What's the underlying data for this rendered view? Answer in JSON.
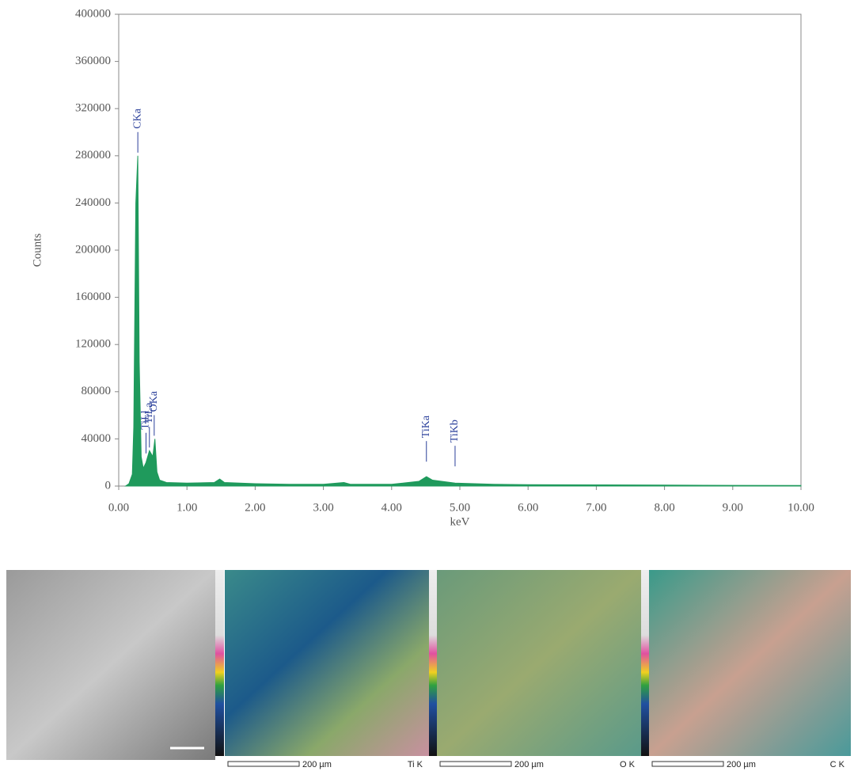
{
  "chart_data": {
    "type": "area",
    "color": "#1f9a5c",
    "x_label": "keV",
    "y_label": "Counts",
    "x": [
      0.1,
      0.15,
      0.2,
      0.22,
      0.25,
      0.28,
      0.3,
      0.33,
      0.36,
      0.4,
      0.45,
      0.5,
      0.53,
      0.56,
      0.6,
      0.7,
      1.0,
      1.4,
      1.48,
      1.55,
      2.0,
      2.5,
      3.0,
      3.3,
      3.4,
      4.0,
      4.4,
      4.51,
      4.6,
      4.93,
      5.5,
      6.0,
      7.0,
      8.0,
      9.0,
      10.0
    ],
    "values": [
      0,
      2000,
      10000,
      50000,
      240000,
      280000,
      105000,
      25000,
      15000,
      20000,
      30000,
      25000,
      40000,
      12000,
      5000,
      3000,
      2500,
      3000,
      6000,
      3000,
      2000,
      1500,
      1500,
      3000,
      1500,
      1500,
      4000,
      8000,
      5000,
      2500,
      1500,
      1200,
      1000,
      800,
      600,
      500
    ],
    "xlim": [
      0,
      10
    ],
    "ylim": [
      0,
      400000
    ],
    "xticks": [
      {
        "value": 0,
        "label": "0.00"
      },
      {
        "value": 1,
        "label": "1.00"
      },
      {
        "value": 2,
        "label": "2.00"
      },
      {
        "value": 3,
        "label": "3.00"
      },
      {
        "value": 4,
        "label": "4.00"
      },
      {
        "value": 5,
        "label": "5.00"
      },
      {
        "value": 6,
        "label": "6.00"
      },
      {
        "value": 7,
        "label": "7.00"
      },
      {
        "value": 8,
        "label": "8.00"
      },
      {
        "value": 9,
        "label": "9.00"
      },
      {
        "value": 10,
        "label": "10.00"
      }
    ],
    "yticks": [
      0,
      40000,
      80000,
      120000,
      160000,
      200000,
      240000,
      280000,
      320000,
      360000,
      400000
    ],
    "annotations": [
      {
        "text": "CKa",
        "x": 0.28,
        "y": 280000
      },
      {
        "text": "TiLl",
        "x": 0.4,
        "y": 25000
      },
      {
        "text": "TiLa",
        "x": 0.45,
        "y": 30000
      },
      {
        "text": "OKa",
        "x": 0.52,
        "y": 40000
      },
      {
        "text": "TiKa",
        "x": 4.51,
        "y": 18000
      },
      {
        "text": "TiKb",
        "x": 4.93,
        "y": 14000
      }
    ]
  },
  "maps": [
    {
      "scale": "200 µm",
      "element": "Ti K"
    },
    {
      "scale": "200 µm",
      "element": "O K"
    },
    {
      "scale": "200 µm",
      "element": "C K"
    }
  ]
}
